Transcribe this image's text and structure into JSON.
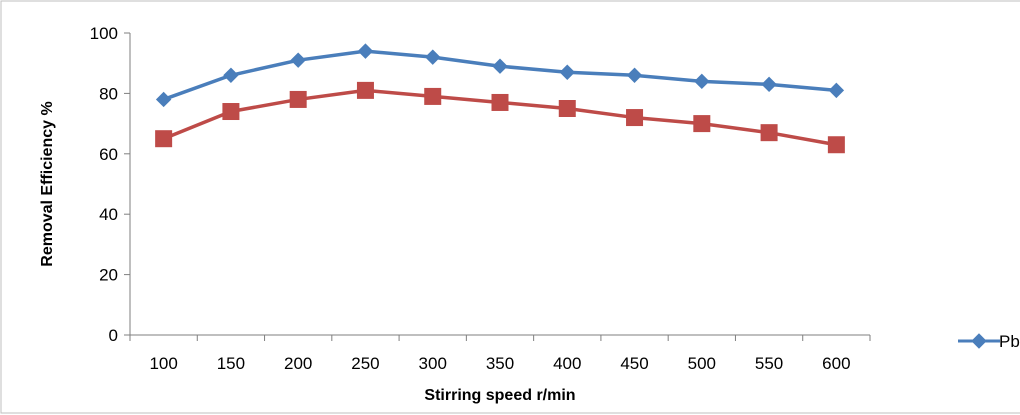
{
  "chart_data": {
    "type": "line",
    "title": "",
    "xlabel": "Stirring  speed  r/min",
    "ylabel": "Removal Efficiency   %",
    "categories": [
      "100",
      "150",
      "200",
      "250",
      "300",
      "350",
      "400",
      "450",
      "500",
      "550",
      "600"
    ],
    "ylim": [
      0,
      100
    ],
    "yticks": [
      "0",
      "20",
      "40",
      "60",
      "80",
      "100"
    ],
    "grid": false,
    "legend_position": "right",
    "series": [
      {
        "name": "Pb",
        "color": "#4a7ebb",
        "marker": "diamond",
        "values": [
          78,
          86,
          91,
          94,
          92,
          89,
          87,
          86,
          84,
          83,
          81
        ]
      },
      {
        "color": "#be4b48",
        "marker": "square",
        "values": [
          65,
          74,
          78,
          81,
          79,
          77,
          75,
          72,
          70,
          67,
          63
        ]
      }
    ]
  }
}
